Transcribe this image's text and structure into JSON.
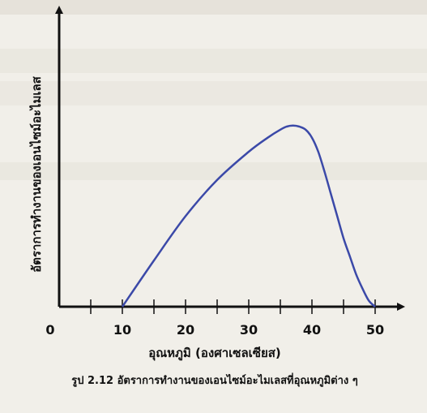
{
  "chart_data": {
    "type": "line",
    "title": "",
    "caption": "รูป 2.12  อัตราการทำงานของเอนไซม์อะไมเลสที่อุณหภูมิต่าง ๆ",
    "xlabel": "อุณหภูมิ (องศาเซลเซียส)",
    "ylabel": "อัตราการทำงานของเอนไซม์อะไมเลส",
    "x_ticks": [
      0,
      10,
      20,
      30,
      40,
      50
    ],
    "xlim": [
      0,
      52
    ],
    "ylim": [
      0,
      100
    ],
    "grid": false,
    "legend": "none",
    "line_color": "#3b49a8",
    "axis_color": "#111111",
    "series": [
      {
        "x": [
          10,
          15,
          20,
          25,
          30,
          33,
          35,
          36,
          37,
          38,
          39,
          40,
          41,
          42,
          43,
          44,
          45,
          46,
          47,
          48,
          49,
          50
        ],
        "y": [
          0,
          23,
          45,
          63,
          77,
          84,
          88,
          89.5,
          90,
          89.5,
          88,
          84,
          77,
          67,
          56,
          45,
          34,
          25,
          16,
          9,
          3,
          0
        ]
      }
    ]
  }
}
